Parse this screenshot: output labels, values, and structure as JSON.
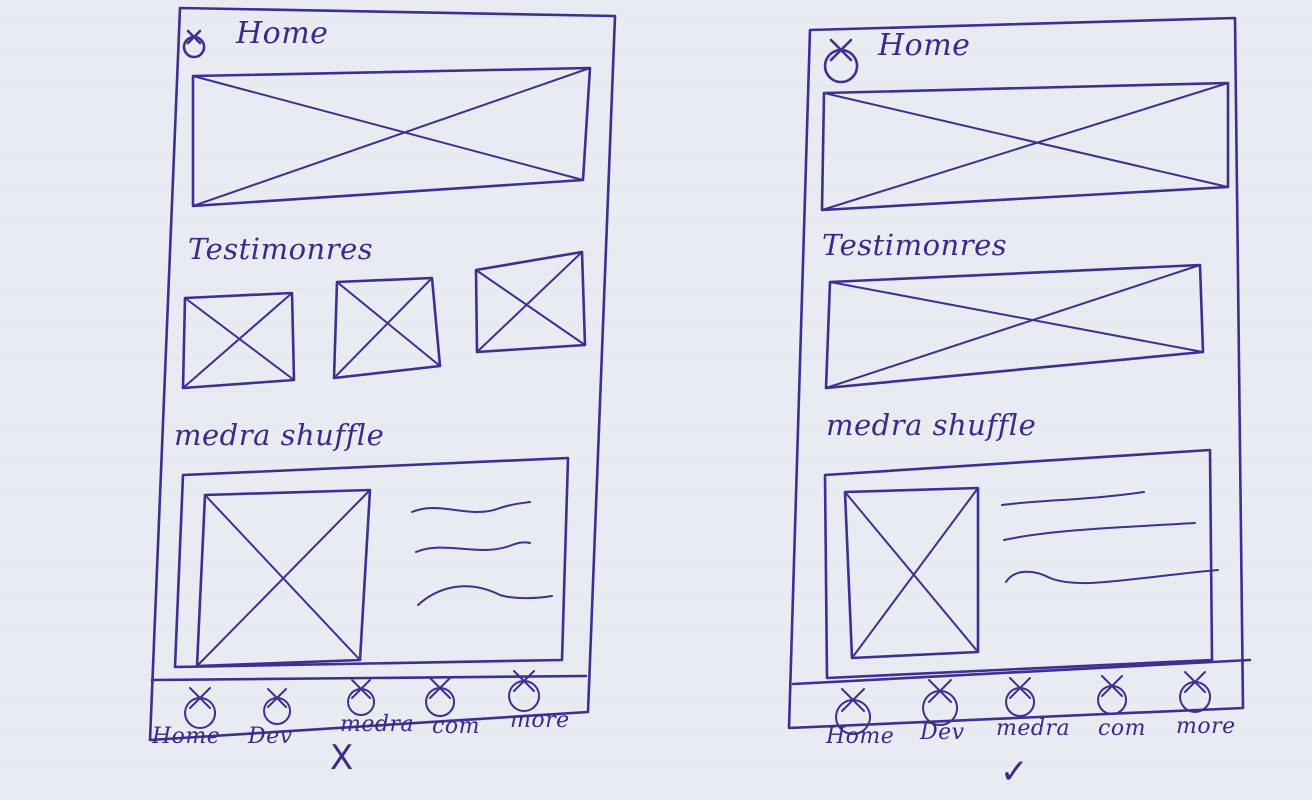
{
  "sketches": [
    {
      "header": {
        "icon": "close-circle-icon",
        "title": "Home"
      },
      "sections": {
        "testimonials": "Testimonres",
        "media": "medra shuffle"
      },
      "nav": [
        "Home",
        "Dev",
        "medra",
        "com",
        "more"
      ],
      "verdict": "X"
    },
    {
      "header": {
        "icon": "close-circle-icon",
        "title": "Home"
      },
      "sections": {
        "testimonials": "Testimonres",
        "media": "medra shuffle"
      },
      "nav": [
        "Home",
        "Dev",
        "medra",
        "com",
        "more"
      ],
      "verdict": "✓"
    }
  ],
  "colors": {
    "ink": "#3d2f93",
    "paper": "#e9ebf3"
  }
}
